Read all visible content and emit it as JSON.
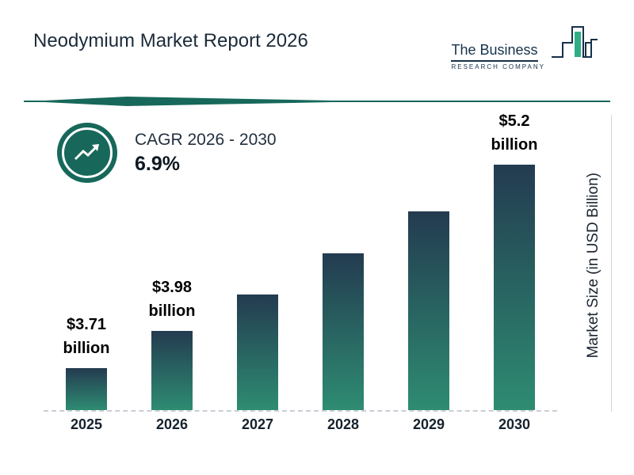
{
  "header": {
    "title": "Neodymium Market Report 2026",
    "logo": {
      "line1": "The Business",
      "line2": "RESEARCH COMPANY"
    }
  },
  "cagr": {
    "label": "CAGR 2026 - 2030",
    "value": "6.9%"
  },
  "chart_data": {
    "type": "bar",
    "title": "Neodymium Market Report 2026",
    "categories": [
      "2025",
      "2026",
      "2027",
      "2028",
      "2029",
      "2030"
    ],
    "values": [
      3.71,
      3.98,
      4.25,
      4.55,
      4.86,
      5.2
    ],
    "unit": "USD Billion",
    "bar_labels": [
      {
        "value": "$3.71",
        "unit": "billion"
      },
      {
        "value": "$3.98",
        "unit": "billion"
      },
      null,
      null,
      null,
      {
        "value": "$5.2",
        "unit": "billion"
      }
    ],
    "xlabel": "",
    "ylabel": "Market Size (in USD Billion)",
    "ylim": [
      3.4,
      5.2
    ],
    "grid": false,
    "legend": false
  },
  "colors": {
    "accent": "#17685A",
    "bar_top": "#233B50",
    "bar_bottom": "#2E8C72",
    "logo_green": "#2FAE85",
    "text_dark": "#1A2B3A"
  }
}
